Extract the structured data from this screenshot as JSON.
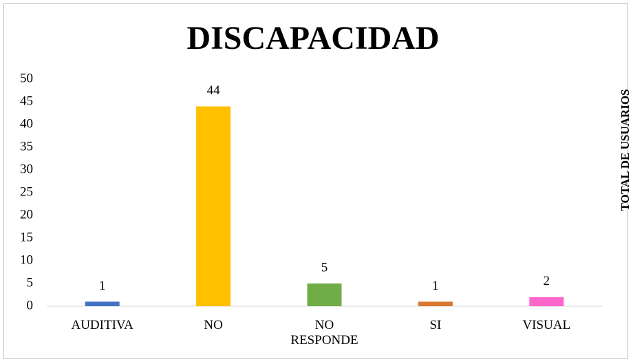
{
  "chart_data": {
    "type": "bar",
    "title": "DISCAPACIDAD",
    "y_label": "TOTAL DE USUARIOS",
    "categories": [
      "AUDITIVA",
      "NO",
      "NO RESPONDE",
      "SI",
      "VISUAL"
    ],
    "values": [
      1,
      44,
      5,
      1,
      2
    ],
    "colors": [
      "#4472c4",
      "#ffc000",
      "#70ad47",
      "#d9782e",
      "#ff66cc"
    ],
    "ylim": [
      0,
      50
    ],
    "yticks": [
      0,
      5,
      10,
      15,
      20,
      25,
      30,
      35,
      40,
      45,
      50
    ],
    "grid": false
  }
}
